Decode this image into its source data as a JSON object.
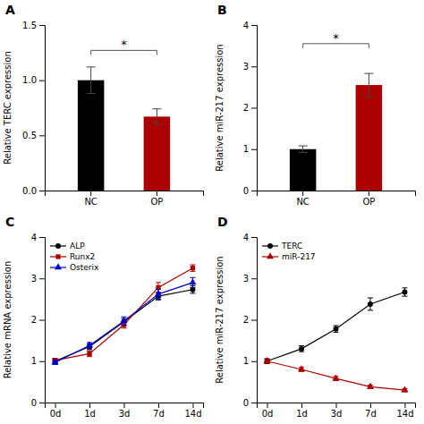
{
  "chart_data": [
    {
      "type": "bar",
      "title": "A",
      "categories": [
        "NC",
        "OP"
      ],
      "values": [
        1.0,
        0.67
      ],
      "errors": [
        0.12,
        0.07
      ],
      "colors": [
        "#000000",
        "#AA0000"
      ],
      "ylabel": "Relative TERC expression",
      "ylim": [
        0,
        1.5
      ],
      "yticks": [
        {
          "value": 0.0,
          "label": "0.0"
        },
        0.5,
        {
          "value": 1.0,
          "label": "1.0"
        },
        1.5
      ],
      "annotations": [
        {
          "text": "*",
          "y": 1.27
        }
      ]
    },
    {
      "type": "bar",
      "title": "B",
      "categories": [
        "NC",
        "OP"
      ],
      "values": [
        1.0,
        2.55
      ],
      "errors": [
        0.08,
        0.28
      ],
      "colors": [
        "#000000",
        "#AA0000"
      ],
      "ylabel": "Relative miR-217 expression",
      "ylim": [
        0,
        4
      ],
      "yticks": [
        0,
        1,
        2,
        3,
        4
      ],
      "annotations": [
        {
          "text": "*",
          "y": 3.55
        }
      ]
    },
    {
      "type": "line",
      "title": "C",
      "categories": [
        "0d",
        "1d",
        "3d",
        "7d",
        "14d"
      ],
      "series": [
        {
          "name": "ALP",
          "color": "#000000",
          "marker": "circle",
          "values": [
            1.0,
            1.35,
            1.95,
            2.57,
            2.73
          ],
          "errors": [
            0.05,
            0.07,
            0.08,
            0.09,
            0.09
          ]
        },
        {
          "name": "Runx2",
          "color": "#AA0000",
          "marker": "square",
          "values": [
            1.02,
            1.18,
            1.88,
            2.78,
            3.25
          ],
          "errors": [
            0.05,
            0.07,
            0.08,
            0.12,
            0.08
          ]
        },
        {
          "name": "Osterix",
          "color": "#0000CC",
          "marker": "triangle",
          "values": [
            0.97,
            1.38,
            1.97,
            2.62,
            2.9
          ],
          "errors": [
            0.05,
            0.07,
            0.1,
            0.12,
            0.12
          ]
        }
      ],
      "ylabel": "Relative mRNA expression",
      "ylim": [
        0,
        4
      ],
      "yticks": [
        0,
        1,
        2,
        3,
        4
      ],
      "legend": "upper left"
    },
    {
      "type": "line",
      "title": "D",
      "categories": [
        "0d",
        "1d",
        "3d",
        "7d",
        "14d"
      ],
      "series": [
        {
          "name": "TERC",
          "color": "#000000",
          "marker": "circle",
          "values": [
            1.0,
            1.3,
            1.78,
            2.38,
            2.67
          ],
          "errors": [
            0.06,
            0.07,
            0.08,
            0.15,
            0.1
          ]
        },
        {
          "name": "miR-217",
          "color": "#AA0000",
          "marker": "triangle",
          "values": [
            1.0,
            0.8,
            0.58,
            0.38,
            0.3
          ],
          "errors": [
            0.05,
            0.05,
            0.05,
            0.04,
            0.04
          ]
        }
      ],
      "ylabel": "Relative miR-217 expression",
      "ylim": [
        0,
        4
      ],
      "yticks": [
        0,
        1,
        2,
        3,
        4
      ],
      "legend": "upper left"
    }
  ]
}
